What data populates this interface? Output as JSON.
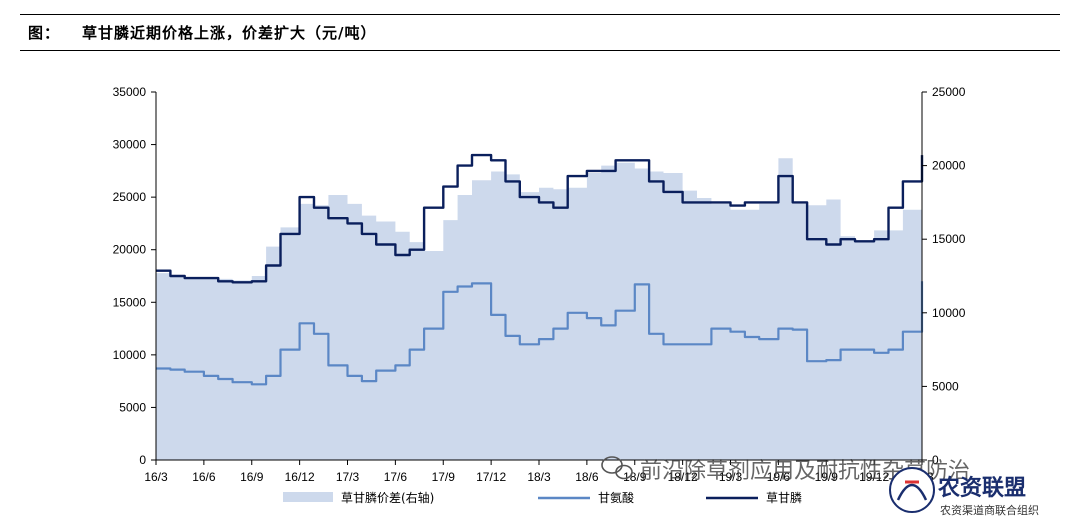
{
  "header": {
    "label": "图：",
    "title": "草甘膦近期价格上涨，价差扩大（元/吨）"
  },
  "watermark": {
    "text": "前沿除草剂应用及耐抗性杂草防治",
    "logo_text": "农资联盟",
    "logo_sub": "农资渠道商联合组织"
  },
  "colors": {
    "area": "#cdd9ec",
    "glycine": "#5b87c5",
    "glyphosate": "#0a1f5c"
  },
  "chart_data": {
    "type": "line",
    "x_tick_labels": [
      "16/3",
      "16/6",
      "16/9",
      "16/12",
      "17/3",
      "17/6",
      "17/9",
      "17/12",
      "18/3",
      "18/6",
      "18/9",
      "18/12",
      "19/3",
      "19/6",
      "19/9",
      "19/12",
      "20/3"
    ],
    "y_left": {
      "min": 0,
      "max": 35000,
      "ticks": [
        0,
        5000,
        10000,
        15000,
        20000,
        25000,
        30000,
        35000
      ]
    },
    "y_right": {
      "min": 0,
      "max": 25000,
      "ticks": [
        0,
        5000,
        10000,
        15000,
        20000,
        25000
      ]
    },
    "series": [
      {
        "name": "草甘膦价差(右轴)",
        "type": "area",
        "axis": "right",
        "x": [
          0,
          0.3,
          0.6,
          1,
          1.3,
          1.6,
          2,
          2.3,
          2.6,
          3,
          3.3,
          3.6,
          4,
          4.3,
          4.6,
          5,
          5.3,
          5.6,
          6,
          6.3,
          6.6,
          7,
          7.3,
          7.6,
          8,
          8.3,
          8.6,
          9,
          9.3,
          9.6,
          10,
          10.3,
          10.6,
          11,
          11.3,
          11.6,
          12,
          12.3,
          12.6,
          13,
          13.3,
          13.6,
          14,
          14.3,
          14.6,
          15,
          15.3,
          15.6,
          16
        ],
        "values": [
          12700,
          12500,
          12400,
          12300,
          12300,
          12200,
          12500,
          14500,
          15800,
          17400,
          17300,
          18000,
          17400,
          16600,
          16200,
          15500,
          14800,
          14200,
          16300,
          18000,
          19000,
          19600,
          19400,
          18200,
          18500,
          18400,
          18500,
          19500,
          20000,
          20200,
          19800,
          19600,
          19500,
          18300,
          17800,
          17400,
          17000,
          17000,
          17400,
          20500,
          17400,
          17300,
          17700,
          15200,
          14800,
          15600,
          15600,
          17000,
          19000
        ]
      },
      {
        "name": "甘氨酸",
        "type": "line",
        "axis": "left",
        "x": [
          0,
          0.3,
          0.6,
          1,
          1.3,
          1.6,
          2,
          2.3,
          2.6,
          3,
          3.3,
          3.6,
          4,
          4.3,
          4.6,
          5,
          5.3,
          5.6,
          6,
          6.3,
          6.6,
          7,
          7.3,
          7.6,
          8,
          8.3,
          8.6,
          9,
          9.3,
          9.6,
          10,
          10.3,
          10.6,
          11,
          11.3,
          11.6,
          12,
          12.3,
          12.6,
          13,
          13.3,
          13.6,
          14,
          14.3,
          14.6,
          15,
          15.3,
          15.6,
          16
        ],
        "values": [
          8700,
          8600,
          8400,
          8000,
          7700,
          7400,
          7200,
          8000,
          10500,
          13000,
          12000,
          9000,
          8000,
          7500,
          8500,
          9000,
          10500,
          12500,
          16000,
          16500,
          16800,
          13800,
          11800,
          11000,
          11500,
          12500,
          14000,
          13500,
          12800,
          14200,
          16700,
          12000,
          11000,
          11000,
          11000,
          12500,
          12200,
          11700,
          11500,
          12500,
          12400,
          9400,
          9500,
          10500,
          10500,
          10200,
          10500,
          12200,
          17000
        ]
      },
      {
        "name": "草甘膦",
        "type": "line",
        "axis": "left",
        "x": [
          0,
          0.3,
          0.6,
          1,
          1.3,
          1.6,
          2,
          2.3,
          2.6,
          3,
          3.3,
          3.6,
          4,
          4.3,
          4.6,
          5,
          5.3,
          5.6,
          6,
          6.3,
          6.6,
          7,
          7.3,
          7.6,
          8,
          8.3,
          8.6,
          9,
          9.3,
          9.6,
          10,
          10.3,
          10.6,
          11,
          11.3,
          11.6,
          12,
          12.3,
          12.6,
          13,
          13.3,
          13.6,
          14,
          14.3,
          14.6,
          15,
          15.3,
          15.6,
          16
        ],
        "values": [
          18000,
          17500,
          17300,
          17300,
          17000,
          16900,
          17000,
          18500,
          21500,
          25000,
          24000,
          23000,
          22500,
          21500,
          20500,
          19500,
          20000,
          24000,
          26000,
          28000,
          29000,
          28500,
          26500,
          25000,
          24500,
          24000,
          27000,
          27500,
          27500,
          28500,
          28500,
          26500,
          25500,
          24500,
          24500,
          24500,
          24200,
          24500,
          24500,
          27000,
          24500,
          21000,
          20500,
          21000,
          20800,
          21000,
          24000,
          26500,
          29000
        ]
      }
    ]
  }
}
